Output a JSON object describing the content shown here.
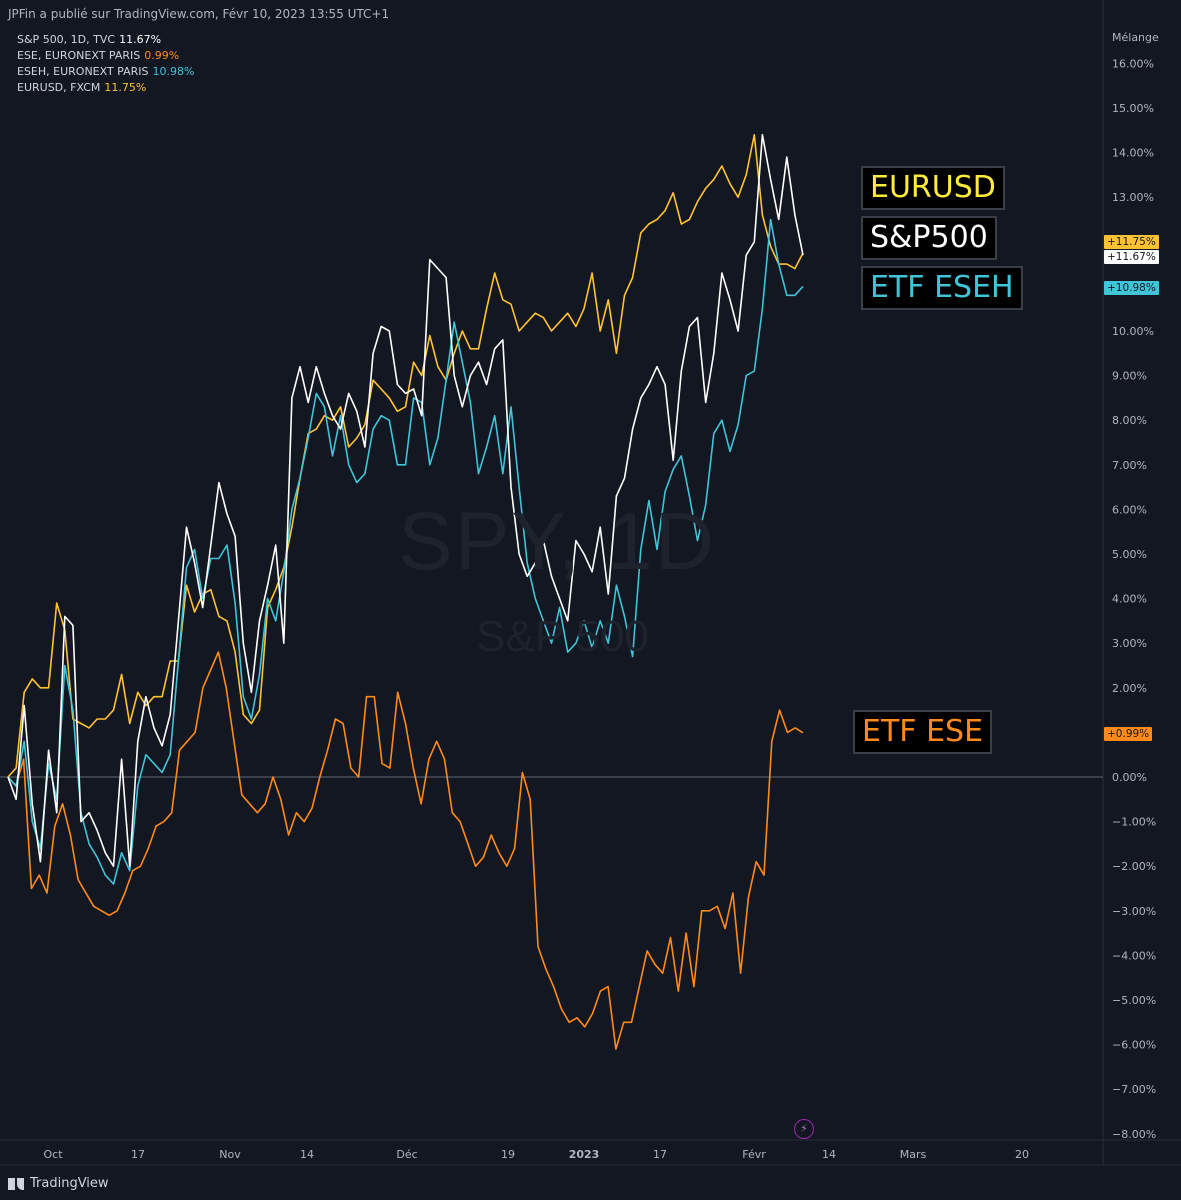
{
  "header": {
    "published": "JPFin a publié sur TradingView.com, Févr 10, 2023 13:55 UTC+1"
  },
  "legend": [
    {
      "name": "S&P 500, 1D, TVC",
      "value": "11.67%",
      "color": "#ffffff"
    },
    {
      "name": "ESE, EURONEXT PARIS",
      "value": "0.99%",
      "color": "#ff8a1a"
    },
    {
      "name": "ESEH, EURONEXT PARIS",
      "value": "10.98%",
      "color": "#40c4d8"
    },
    {
      "name": "EURUSD, FXCM",
      "value": "11.75%",
      "color": "#ffc233"
    }
  ],
  "scale_mode": "Mélange",
  "watermark": {
    "symbol": "SPY, 1D",
    "description": "S&P 500"
  },
  "annotations": {
    "eurusd": "EURUSD",
    "sp500": "S&P500",
    "eseh": "ETF ESEH",
    "ese": "ETF ESE"
  },
  "price_tags": {
    "eurusd": "+11.75%",
    "sp500": "+11.67%",
    "eseh": "+10.98%",
    "ese": "+0.99%"
  },
  "footer": {
    "brand": "TradingView"
  },
  "chart_data": {
    "type": "line",
    "y_axis": {
      "ticks": [
        "16.00%",
        "15.00%",
        "14.00%",
        "13.00%",
        "12.00%",
        "11.00%",
        "10.00%",
        "9.00%",
        "8.00%",
        "7.00%",
        "6.00%",
        "5.00%",
        "4.00%",
        "3.00%",
        "2.00%",
        "1.00%",
        "0.00%",
        "−1.00%",
        "−2.00%",
        "−3.00%",
        "−4.00%",
        "−5.00%",
        "−6.00%",
        "−7.00%",
        "−8.00%"
      ],
      "ylim": [
        -8.0,
        16.0
      ]
    },
    "x_axis": {
      "ticks": [
        "Oct",
        "17",
        "Nov",
        "14",
        "Déc",
        "19",
        "2023",
        "17",
        "Févr",
        "14",
        "Mars",
        "20"
      ]
    },
    "series": [
      {
        "name": "S&P 500",
        "color": "#ffffff",
        "last": 11.67,
        "values": [
          0.0,
          -0.5,
          1.6,
          -0.6,
          -1.9,
          0.6,
          -0.8,
          3.6,
          3.4,
          -1.0,
          -0.8,
          -1.2,
          -1.7,
          -2.0,
          0.4,
          -2.0,
          0.8,
          1.8,
          1.1,
          0.7,
          1.4,
          3.5,
          5.6,
          4.8,
          3.8,
          5.2,
          6.6,
          5.9,
          5.4,
          3.0,
          1.9,
          3.5,
          4.3,
          5.2,
          3.0,
          8.5,
          9.2,
          8.4,
          9.2,
          8.6,
          8.1,
          7.8,
          8.6,
          8.2,
          7.4,
          9.5,
          10.1,
          10.0,
          8.8,
          8.6,
          8.7,
          8.1,
          11.6,
          11.4,
          11.2,
          9.0,
          8.3,
          9.0,
          9.3,
          8.8,
          9.6,
          9.8,
          6.5,
          5.0,
          4.5,
          4.8,
          5.3,
          4.5,
          4.0,
          3.5,
          5.3,
          5.0,
          4.6,
          5.6,
          4.1,
          6.3,
          6.7,
          7.8,
          8.5,
          8.8,
          9.2,
          8.8,
          7.1,
          9.1,
          10.1,
          10.3,
          8.4,
          9.5,
          11.3,
          10.7,
          10.0,
          11.7,
          12.0,
          14.4,
          13.4,
          12.5,
          13.9,
          12.6,
          11.7
        ]
      },
      {
        "name": "ESE",
        "color": "#ff8a1a",
        "last": 0.99,
        "values": [
          0.0,
          -0.2,
          0.4,
          -2.5,
          -2.2,
          -2.6,
          -1.1,
          -0.6,
          -1.3,
          -2.3,
          -2.6,
          -2.9,
          -3.0,
          -3.1,
          -3.0,
          -2.6,
          -2.1,
          -2.0,
          -1.6,
          -1.1,
          -1.0,
          -0.8,
          0.6,
          0.8,
          1.0,
          2.0,
          2.4,
          2.8,
          2.0,
          0.8,
          -0.4,
          -0.6,
          -0.8,
          -0.6,
          0.0,
          -0.5,
          -1.3,
          -0.8,
          -1.0,
          -0.7,
          0.0,
          0.6,
          1.3,
          1.2,
          0.2,
          0.0,
          1.8,
          1.8,
          0.3,
          0.2,
          1.9,
          1.2,
          0.2,
          -0.6,
          0.4,
          0.8,
          0.4,
          -0.8,
          -1.0,
          -1.5,
          -2.0,
          -1.8,
          -1.3,
          -1.7,
          -2.0,
          -1.6,
          0.1,
          -0.5,
          -3.8,
          -4.3,
          -4.7,
          -5.2,
          -5.5,
          -5.4,
          -5.6,
          -5.3,
          -4.8,
          -4.7,
          -6.1,
          -5.5,
          -5.5,
          -4.7,
          -3.9,
          -4.2,
          -4.4,
          -3.6,
          -4.8,
          -3.5,
          -4.7,
          -3.0,
          -3.0,
          -2.9,
          -3.4,
          -2.6,
          -4.4,
          -2.7,
          -1.9,
          -2.2,
          0.8,
          1.5,
          1.0,
          1.1,
          0.99
        ]
      },
      {
        "name": "ESEH",
        "color": "#40c4d8",
        "last": 10.98,
        "values": [
          0.0,
          -0.2,
          0.8,
          -1.0,
          -1.6,
          0.3,
          -0.5,
          2.5,
          1.5,
          -0.8,
          -1.5,
          -1.8,
          -2.2,
          -2.4,
          -1.7,
          -2.1,
          -0.2,
          0.5,
          0.3,
          0.1,
          0.5,
          2.6,
          4.7,
          5.1,
          4.0,
          4.9,
          4.9,
          5.2,
          3.9,
          1.8,
          1.3,
          2.3,
          4.0,
          3.5,
          4.6,
          6.0,
          6.7,
          7.6,
          8.6,
          8.3,
          7.2,
          8.1,
          7.0,
          6.6,
          6.8,
          7.8,
          8.1,
          8.0,
          7.0,
          7.0,
          8.5,
          8.4,
          7.0,
          7.6,
          8.9,
          10.2,
          9.3,
          8.4,
          6.8,
          7.4,
          8.1,
          6.8,
          8.3,
          6.5,
          4.8,
          4.0,
          3.5,
          3.0,
          3.8,
          2.8,
          3.0,
          3.5,
          2.9,
          3.5,
          3.0,
          4.3,
          3.6,
          2.7,
          5.1,
          6.2,
          5.1,
          6.4,
          6.9,
          7.2,
          6.3,
          5.3,
          6.1,
          7.7,
          8.0,
          7.3,
          7.9,
          9.0,
          9.1,
          10.5,
          12.5,
          11.5,
          10.8,
          10.8,
          11.0
        ]
      },
      {
        "name": "EURUSD",
        "color": "#ffc233",
        "last": 11.75,
        "values": [
          0.0,
          0.2,
          1.9,
          2.2,
          2.0,
          2.0,
          3.9,
          3.3,
          1.3,
          1.2,
          1.1,
          1.3,
          1.3,
          1.5,
          2.3,
          1.2,
          1.9,
          1.6,
          1.8,
          1.8,
          2.6,
          2.6,
          4.3,
          3.7,
          4.1,
          4.2,
          3.6,
          3.5,
          2.8,
          1.4,
          1.2,
          1.5,
          3.8,
          4.2,
          4.7,
          5.6,
          6.7,
          7.7,
          7.8,
          8.1,
          8.0,
          8.3,
          7.4,
          7.6,
          7.9,
          8.9,
          8.7,
          8.5,
          8.2,
          8.3,
          9.3,
          9.0,
          9.9,
          9.2,
          8.9,
          9.5,
          10.0,
          9.6,
          9.6,
          10.5,
          11.3,
          10.7,
          10.6,
          10.0,
          10.2,
          10.4,
          10.3,
          10.0,
          10.2,
          10.4,
          10.1,
          10.5,
          11.3,
          10.0,
          10.7,
          9.5,
          10.8,
          11.2,
          12.2,
          12.4,
          12.5,
          12.7,
          13.1,
          12.4,
          12.5,
          12.9,
          13.2,
          13.4,
          13.7,
          13.3,
          13.0,
          13.5,
          14.4,
          12.6,
          11.9,
          11.5,
          11.5,
          11.4,
          11.75
        ]
      }
    ]
  }
}
